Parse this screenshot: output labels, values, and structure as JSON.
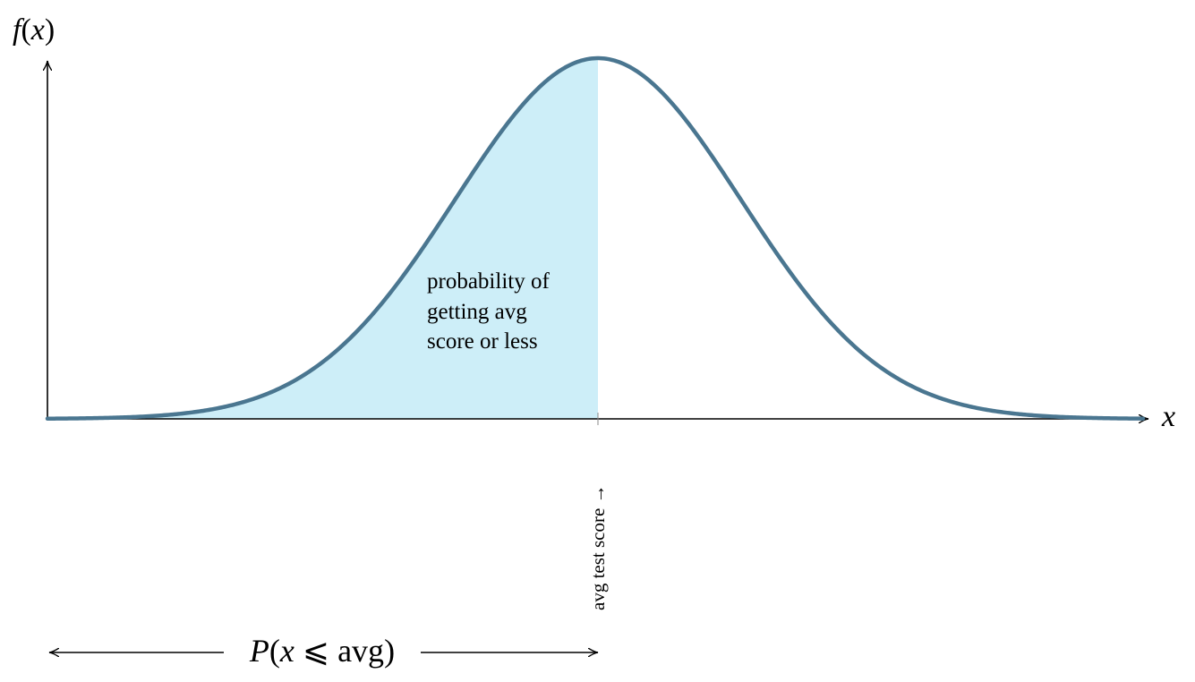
{
  "diagram": {
    "type": "normal-distribution-curve",
    "colors": {
      "curve": "#4a7690",
      "shaded_area": "#cdeef8",
      "axis": "#000000",
      "text": "#000000"
    },
    "y_axis_label": {
      "func": "f",
      "open": "(",
      "var": "x",
      "close": ")"
    },
    "x_axis_label": "x",
    "shaded_annotation": {
      "lines": [
        "probability of",
        "getting avg",
        "score or less"
      ]
    },
    "marker_label": "avg test score →",
    "probability_label": {
      "P": "P",
      "open": "(",
      "var": "x",
      "rel": " ⩽ ",
      "arg": "avg",
      "close": ")"
    }
  }
}
